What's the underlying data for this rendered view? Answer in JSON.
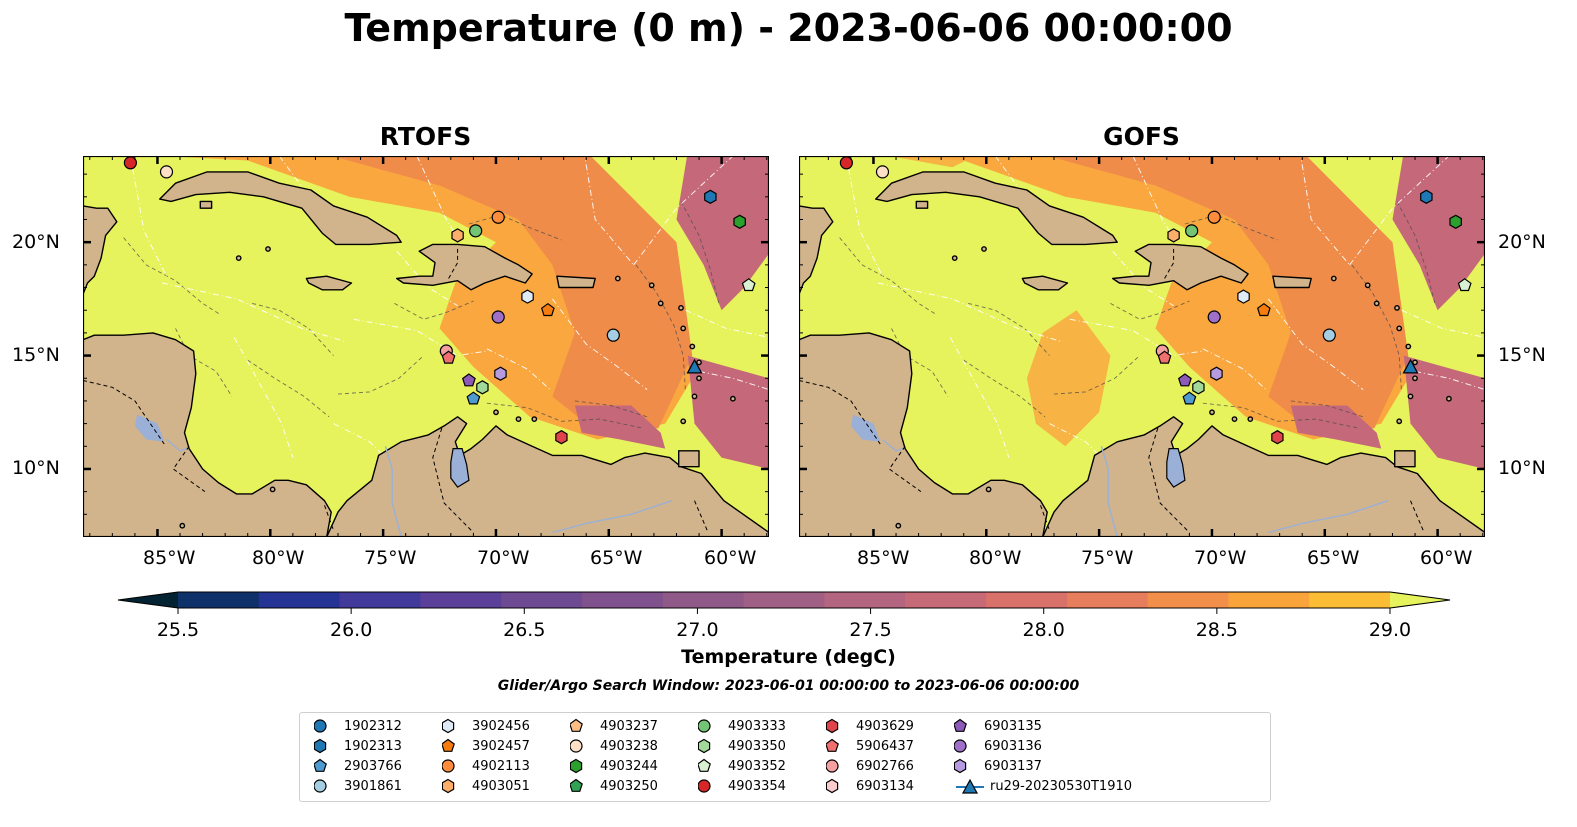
{
  "title": "Temperature (0 m) - 2023-06-06 00:00:00",
  "panels": [
    {
      "title": "RTOFS",
      "name": "rtofs"
    },
    {
      "title": "GOFS",
      "name": "gofs"
    }
  ],
  "lon_ticks": [
    "85°W",
    "80°W",
    "75°W",
    "70°W",
    "65°W",
    "60°W"
  ],
  "lat_ticks": [
    "20°N",
    "15°N",
    "10°N"
  ],
  "colorbar": {
    "label": "Temperature (degC)",
    "min": 25.25,
    "max": 29.25,
    "step": 0.25,
    "ticks": [
      "25.5",
      "26.0",
      "26.5",
      "27.0",
      "27.5",
      "28.0",
      "28.5",
      "29.0"
    ],
    "colors": [
      "#032333",
      "#0f3169",
      "#253494",
      "#423a9a",
      "#5a4099",
      "#6e4a93",
      "#7f528d",
      "#8f5a88",
      "#a05f84",
      "#b4657f",
      "#c76a77",
      "#d7716a",
      "#e67d5c",
      "#f28f4b",
      "#f8a43b",
      "#fbbd35",
      "#e6f35c"
    ]
  },
  "search_window": "Glider/Argo Search Window: 2023-06-01 00:00:00 to 2023-06-06 00:00:00",
  "map_colors": {
    "land": "#d2b48c",
    "water_inland": "#9ab0d6",
    "sea_warm": "#e6f35c",
    "sea_hot": "#f9a73e",
    "sea_hotter": "#ef8c4a",
    "sea_cool": "#c5697a"
  },
  "legend": [
    {
      "label": "1902312",
      "color": "#1f77b4",
      "marker": "circle"
    },
    {
      "label": "1902313",
      "color": "#1f77b4",
      "marker": "hexagon"
    },
    {
      "label": "2903766",
      "color": "#4f9bd0",
      "marker": "pentagon"
    },
    {
      "label": "3901861",
      "color": "#a6cee3",
      "marker": "circle"
    },
    {
      "label": "3902456",
      "color": "#deebf7",
      "marker": "hexagon"
    },
    {
      "label": "3902457",
      "color": "#f57d0f",
      "marker": "pentagon"
    },
    {
      "label": "4902113",
      "color": "#fd8d3c",
      "marker": "circle"
    },
    {
      "label": "4903051",
      "color": "#fdae6b",
      "marker": "hexagon"
    },
    {
      "label": "4903237",
      "color": "#fdbe85",
      "marker": "pentagon"
    },
    {
      "label": "4903238",
      "color": "#fde0c5",
      "marker": "circle"
    },
    {
      "label": "4903244",
      "color": "#2ca02c",
      "marker": "hexagon"
    },
    {
      "label": "4903250",
      "color": "#31a354",
      "marker": "pentagon"
    },
    {
      "label": "4903333",
      "color": "#74c476",
      "marker": "circle"
    },
    {
      "label": "4903350",
      "color": "#a1d99b",
      "marker": "hexagon"
    },
    {
      "label": "4903352",
      "color": "#d9f0d3",
      "marker": "pentagon"
    },
    {
      "label": "4903354",
      "color": "#d62728",
      "marker": "circle"
    },
    {
      "label": "4903629",
      "color": "#e0444a",
      "marker": "hexagon"
    },
    {
      "label": "5906437",
      "color": "#f07070",
      "marker": "pentagon"
    },
    {
      "label": "6902766",
      "color": "#f4a0a0",
      "marker": "circle"
    },
    {
      "label": "6903134",
      "color": "#f8cccc",
      "marker": "hexagon"
    },
    {
      "label": "6903135",
      "color": "#8e5ab8",
      "marker": "pentagon"
    },
    {
      "label": "6903136",
      "color": "#a070c8",
      "marker": "circle"
    },
    {
      "label": "6903137",
      "color": "#b79be0",
      "marker": "hexagon"
    },
    {
      "label": "ru29-20230530T1910",
      "color": "#1f77b4",
      "marker": "triangle-line"
    }
  ],
  "floats": [
    {
      "id": "4903354",
      "lon": -86.2,
      "lat": 23.5
    },
    {
      "id": "4903238",
      "lon": -84.6,
      "lat": 23.1
    },
    {
      "id": "1902313",
      "lon": -60.5,
      "lat": 22.0
    },
    {
      "id": "4903244",
      "lon": -59.2,
      "lat": 20.9
    },
    {
      "id": "4902113",
      "lon": -69.9,
      "lat": 21.1
    },
    {
      "id": "4903333",
      "lon": -70.9,
      "lat": 20.5
    },
    {
      "id": "4903051",
      "lon": -71.7,
      "lat": 20.3
    },
    {
      "id": "4903352",
      "lon": -58.8,
      "lat": 18.1
    },
    {
      "id": "3902456",
      "lon": -68.6,
      "lat": 17.6
    },
    {
      "id": "3902457",
      "lon": -67.7,
      "lat": 17.0
    },
    {
      "id": "6903136",
      "lon": -69.9,
      "lat": 16.7
    },
    {
      "id": "3901861",
      "lon": -64.8,
      "lat": 15.9
    },
    {
      "id": "6902766",
      "lon": -72.2,
      "lat": 15.2
    },
    {
      "id": "5906437",
      "lon": -72.1,
      "lat": 14.9
    },
    {
      "id": "6903135",
      "lon": -71.2,
      "lat": 13.9
    },
    {
      "id": "6903137",
      "lon": -69.8,
      "lat": 14.2
    },
    {
      "id": "4903350",
      "lon": -70.6,
      "lat": 13.6
    },
    {
      "id": "2903766",
      "lon": -71.0,
      "lat": 13.1
    },
    {
      "id": "4903629",
      "lon": -67.1,
      "lat": 11.4
    },
    {
      "id": "ru29-20230530T1910",
      "lon": -61.2,
      "lat": 14.5
    }
  ]
}
